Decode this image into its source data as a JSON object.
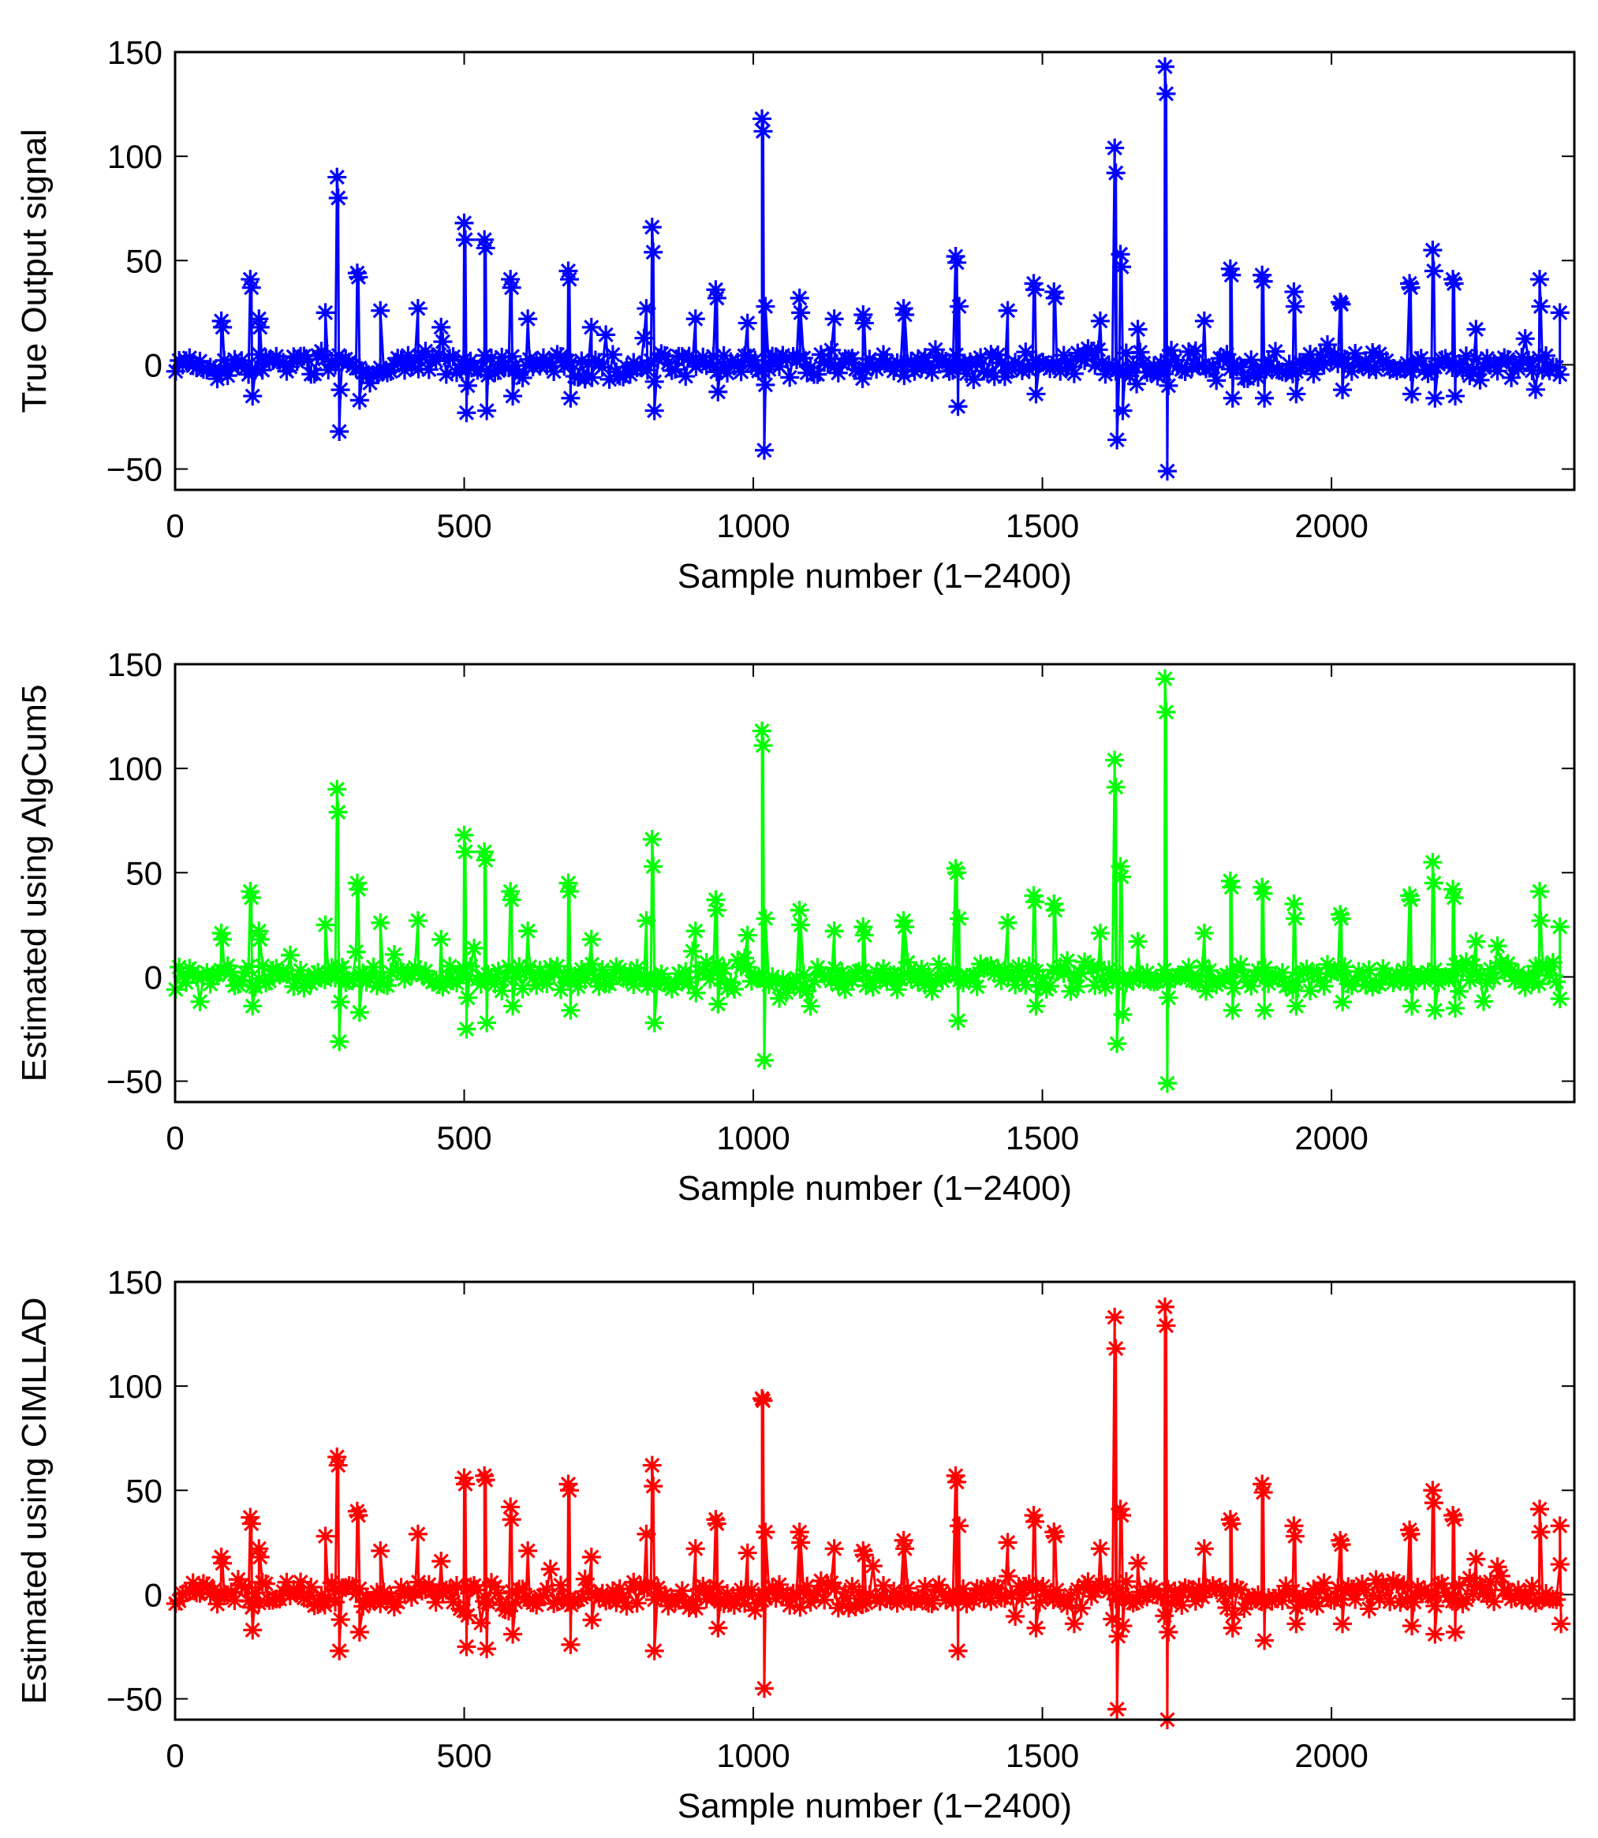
{
  "chart_data": [
    {
      "type": "line",
      "marker": "asterisk",
      "color": "#0000ff",
      "xlabel": "Sample number (1−2400)",
      "ylabel": "True Output signal",
      "xlim": [
        0,
        2420
      ],
      "ylim": [
        -60,
        150
      ],
      "xticks": [
        0,
        500,
        1000,
        1500,
        2000
      ],
      "yticks": [
        -50,
        0,
        50,
        100,
        150
      ],
      "ytick_labels": [
        "−50",
        "0",
        "50",
        "100",
        "150"
      ],
      "noise_scale": 8,
      "spikes": [
        {
          "x": 80,
          "values": [
            21,
            18
          ]
        },
        {
          "x": 130,
          "values": [
            41,
            37,
            -15
          ]
        },
        {
          "x": 145,
          "values": [
            22,
            18
          ]
        },
        {
          "x": 260,
          "values": [
            25
          ]
        },
        {
          "x": 280,
          "values": [
            90,
            80,
            -32,
            -12
          ]
        },
        {
          "x": 315,
          "values": [
            44,
            42,
            -17
          ]
        },
        {
          "x": 355,
          "values": [
            26
          ]
        },
        {
          "x": 420,
          "values": [
            27
          ]
        },
        {
          "x": 460,
          "values": [
            18
          ]
        },
        {
          "x": 500,
          "values": [
            68,
            60,
            -23,
            -10
          ]
        },
        {
          "x": 535,
          "values": [
            60,
            56,
            -22
          ]
        },
        {
          "x": 580,
          "values": [
            41,
            37,
            -15
          ]
        },
        {
          "x": 610,
          "values": [
            22
          ]
        },
        {
          "x": 680,
          "values": [
            45,
            41,
            -16
          ]
        },
        {
          "x": 720,
          "values": [
            18
          ]
        },
        {
          "x": 815,
          "values": [
            27
          ]
        },
        {
          "x": 825,
          "values": [
            66,
            54,
            -22
          ]
        },
        {
          "x": 900,
          "values": [
            22
          ]
        },
        {
          "x": 935,
          "values": [
            36,
            32,
            -13
          ]
        },
        {
          "x": 990,
          "values": [
            20
          ]
        },
        {
          "x": 1015,
          "values": [
            118,
            112,
            -41,
            28
          ]
        },
        {
          "x": 1080,
          "values": [
            32,
            25
          ]
        },
        {
          "x": 1140,
          "values": [
            22
          ]
        },
        {
          "x": 1190,
          "values": [
            24,
            20
          ]
        },
        {
          "x": 1260,
          "values": [
            27,
            24
          ]
        },
        {
          "x": 1350,
          "values": [
            52,
            49,
            -20,
            28
          ]
        },
        {
          "x": 1440,
          "values": [
            26
          ]
        },
        {
          "x": 1485,
          "values": [
            39,
            36,
            -14
          ]
        },
        {
          "x": 1520,
          "values": [
            35,
            32
          ]
        },
        {
          "x": 1600,
          "values": [
            21
          ]
        },
        {
          "x": 1625,
          "values": [
            104,
            92,
            -36
          ]
        },
        {
          "x": 1635,
          "values": [
            53,
            47,
            -22
          ]
        },
        {
          "x": 1665,
          "values": [
            17
          ]
        },
        {
          "x": 1712,
          "values": [
            143,
            130,
            -51,
            -10
          ]
        },
        {
          "x": 1780,
          "values": [
            21
          ]
        },
        {
          "x": 1825,
          "values": [
            46,
            43,
            -16
          ]
        },
        {
          "x": 1880,
          "values": [
            43,
            40,
            -16
          ]
        },
        {
          "x": 1935,
          "values": [
            35,
            28,
            -14
          ]
        },
        {
          "x": 2015,
          "values": [
            30,
            29,
            -12
          ]
        },
        {
          "x": 2135,
          "values": [
            39,
            37,
            -14
          ]
        },
        {
          "x": 2175,
          "values": [
            55,
            45,
            -16
          ]
        },
        {
          "x": 2210,
          "values": [
            41,
            39,
            -15
          ]
        },
        {
          "x": 2250,
          "values": [
            17
          ]
        },
        {
          "x": 2360,
          "values": [
            41,
            28
          ]
        },
        {
          "x": 2395,
          "values": [
            25
          ]
        }
      ]
    },
    {
      "type": "line",
      "marker": "asterisk",
      "color": "#00ff00",
      "xlabel": "Sample number (1−2400)",
      "ylabel": "Estimated using AlgCum5",
      "xlim": [
        0,
        2420
      ],
      "ylim": [
        -60,
        150
      ],
      "xticks": [
        0,
        500,
        1000,
        1500,
        2000
      ],
      "yticks": [
        -50,
        0,
        50,
        100,
        150
      ],
      "ytick_labels": [
        "−50",
        "0",
        "50",
        "100",
        "150"
      ],
      "noise_scale": 8,
      "spikes": [
        {
          "x": 80,
          "values": [
            21,
            18
          ]
        },
        {
          "x": 130,
          "values": [
            41,
            38,
            -14
          ]
        },
        {
          "x": 145,
          "values": [
            22,
            18
          ]
        },
        {
          "x": 260,
          "values": [
            25
          ]
        },
        {
          "x": 280,
          "values": [
            90,
            79,
            -31,
            -12
          ]
        },
        {
          "x": 315,
          "values": [
            45,
            42,
            -17
          ]
        },
        {
          "x": 355,
          "values": [
            26
          ]
        },
        {
          "x": 420,
          "values": [
            27
          ]
        },
        {
          "x": 460,
          "values": [
            18
          ]
        },
        {
          "x": 500,
          "values": [
            68,
            60,
            -25,
            -10
          ]
        },
        {
          "x": 535,
          "values": [
            60,
            56,
            -22
          ]
        },
        {
          "x": 580,
          "values": [
            41,
            37,
            -14
          ]
        },
        {
          "x": 610,
          "values": [
            22
          ]
        },
        {
          "x": 680,
          "values": [
            45,
            41,
            -16
          ]
        },
        {
          "x": 720,
          "values": [
            18
          ]
        },
        {
          "x": 815,
          "values": [
            27
          ]
        },
        {
          "x": 825,
          "values": [
            66,
            53,
            -22
          ]
        },
        {
          "x": 900,
          "values": [
            22
          ]
        },
        {
          "x": 935,
          "values": [
            37,
            32,
            -13
          ]
        },
        {
          "x": 990,
          "values": [
            20
          ]
        },
        {
          "x": 1015,
          "values": [
            118,
            111,
            -40,
            28
          ]
        },
        {
          "x": 1080,
          "values": [
            32,
            25
          ]
        },
        {
          "x": 1140,
          "values": [
            22
          ]
        },
        {
          "x": 1190,
          "values": [
            24,
            20
          ]
        },
        {
          "x": 1260,
          "values": [
            27,
            24
          ]
        },
        {
          "x": 1350,
          "values": [
            52,
            50,
            -21,
            28
          ]
        },
        {
          "x": 1440,
          "values": [
            26
          ]
        },
        {
          "x": 1485,
          "values": [
            39,
            36,
            -14
          ]
        },
        {
          "x": 1520,
          "values": [
            35,
            32
          ]
        },
        {
          "x": 1600,
          "values": [
            21
          ]
        },
        {
          "x": 1625,
          "values": [
            104,
            91,
            -32
          ]
        },
        {
          "x": 1635,
          "values": [
            53,
            48,
            -18
          ]
        },
        {
          "x": 1665,
          "values": [
            17
          ]
        },
        {
          "x": 1712,
          "values": [
            143,
            127,
            -51,
            -10
          ]
        },
        {
          "x": 1780,
          "values": [
            21
          ]
        },
        {
          "x": 1825,
          "values": [
            46,
            43,
            -16
          ]
        },
        {
          "x": 1880,
          "values": [
            43,
            40,
            -16
          ]
        },
        {
          "x": 1935,
          "values": [
            35,
            28,
            -14
          ]
        },
        {
          "x": 2015,
          "values": [
            30,
            28,
            -12
          ]
        },
        {
          "x": 2135,
          "values": [
            39,
            37,
            -14
          ]
        },
        {
          "x": 2175,
          "values": [
            55,
            45,
            -16
          ]
        },
        {
          "x": 2210,
          "values": [
            42,
            38,
            -15
          ]
        },
        {
          "x": 2250,
          "values": [
            17
          ]
        },
        {
          "x": 2360,
          "values": [
            41,
            27
          ]
        },
        {
          "x": 2395,
          "values": [
            24
          ]
        }
      ]
    },
    {
      "type": "line",
      "marker": "asterisk",
      "color": "#ff0000",
      "xlabel": "Sample number (1−2400)",
      "ylabel": "Estimated using CIMLLAD",
      "xlim": [
        0,
        2420
      ],
      "ylim": [
        -60,
        150
      ],
      "xticks": [
        0,
        500,
        1000,
        1500,
        2000
      ],
      "yticks": [
        -50,
        0,
        50,
        100,
        150
      ],
      "ytick_labels": [
        "−50",
        "0",
        "50",
        "100",
        "150"
      ],
      "noise_scale": 8,
      "spikes": [
        {
          "x": 80,
          "values": [
            18,
            15
          ]
        },
        {
          "x": 130,
          "values": [
            37,
            34,
            -17
          ]
        },
        {
          "x": 145,
          "values": [
            22,
            18
          ]
        },
        {
          "x": 260,
          "values": [
            28
          ]
        },
        {
          "x": 280,
          "values": [
            66,
            62,
            -27,
            -12
          ]
        },
        {
          "x": 315,
          "values": [
            40,
            38,
            -18
          ]
        },
        {
          "x": 355,
          "values": [
            21
          ]
        },
        {
          "x": 420,
          "values": [
            29
          ]
        },
        {
          "x": 460,
          "values": [
            16
          ]
        },
        {
          "x": 500,
          "values": [
            56,
            53,
            -25,
            -10
          ]
        },
        {
          "x": 535,
          "values": [
            57,
            55,
            -26
          ]
        },
        {
          "x": 580,
          "values": [
            42,
            36,
            -19
          ]
        },
        {
          "x": 610,
          "values": [
            21
          ]
        },
        {
          "x": 680,
          "values": [
            53,
            50,
            -24
          ]
        },
        {
          "x": 720,
          "values": [
            18
          ]
        },
        {
          "x": 815,
          "values": [
            29
          ]
        },
        {
          "x": 825,
          "values": [
            62,
            52,
            -27
          ]
        },
        {
          "x": 900,
          "values": [
            22
          ]
        },
        {
          "x": 935,
          "values": [
            36,
            34,
            -16
          ]
        },
        {
          "x": 990,
          "values": [
            20
          ]
        },
        {
          "x": 1015,
          "values": [
            94,
            93,
            -45,
            30
          ]
        },
        {
          "x": 1080,
          "values": [
            30,
            25
          ]
        },
        {
          "x": 1140,
          "values": [
            22
          ]
        },
        {
          "x": 1190,
          "values": [
            21,
            19
          ]
        },
        {
          "x": 1260,
          "values": [
            26,
            22
          ]
        },
        {
          "x": 1350,
          "values": [
            57,
            54,
            -27,
            33
          ]
        },
        {
          "x": 1440,
          "values": [
            25
          ]
        },
        {
          "x": 1485,
          "values": [
            38,
            35,
            -16
          ]
        },
        {
          "x": 1520,
          "values": [
            30,
            28
          ]
        },
        {
          "x": 1600,
          "values": [
            22
          ]
        },
        {
          "x": 1625,
          "values": [
            133,
            118,
            -55,
            -20
          ]
        },
        {
          "x": 1635,
          "values": [
            41,
            38,
            -15
          ]
        },
        {
          "x": 1665,
          "values": [
            15
          ]
        },
        {
          "x": 1712,
          "values": [
            138,
            129,
            -60,
            -18
          ]
        },
        {
          "x": 1780,
          "values": [
            22
          ]
        },
        {
          "x": 1825,
          "values": [
            36,
            34,
            -16
          ]
        },
        {
          "x": 1880,
          "values": [
            53,
            49,
            -22
          ]
        },
        {
          "x": 1935,
          "values": [
            33,
            28,
            -14
          ]
        },
        {
          "x": 2015,
          "values": [
            26,
            24,
            -14
          ]
        },
        {
          "x": 2135,
          "values": [
            31,
            29,
            -15
          ]
        },
        {
          "x": 2175,
          "values": [
            50,
            44,
            -19
          ]
        },
        {
          "x": 2210,
          "values": [
            38,
            36,
            -18
          ]
        },
        {
          "x": 2250,
          "values": [
            17
          ]
        },
        {
          "x": 2360,
          "values": [
            41,
            30
          ]
        },
        {
          "x": 2395,
          "values": [
            33,
            -14
          ]
        }
      ]
    }
  ]
}
